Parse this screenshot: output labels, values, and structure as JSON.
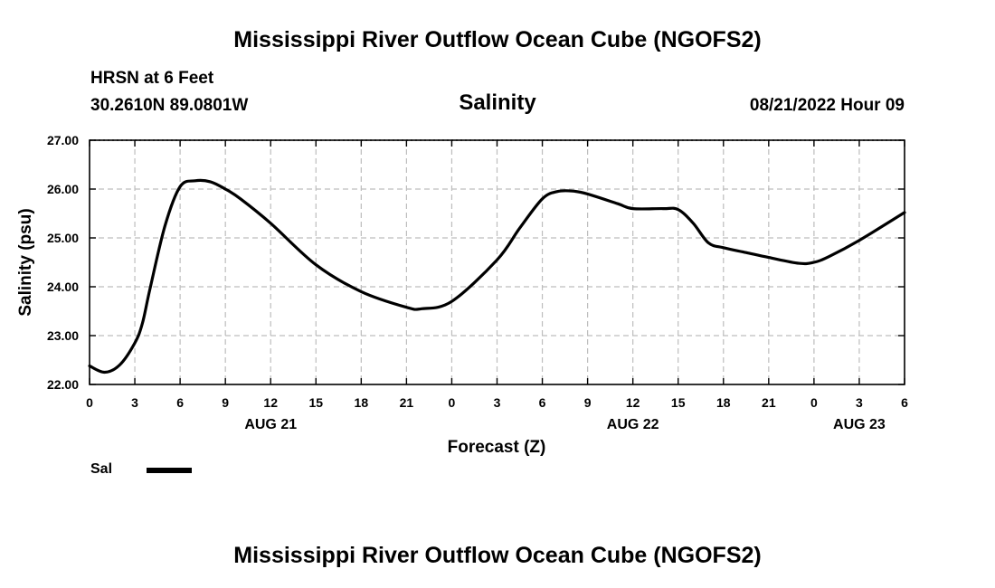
{
  "page": {
    "title_top": "Mississippi River Outflow Ocean Cube (NGOFS2)",
    "title_bottom": "Mississippi River Outflow Ocean Cube (NGOFS2)",
    "station": "HRSN at 6 Feet",
    "coords": "30.2610N  89.0801W",
    "datetime": "08/21/2022 Hour 09"
  },
  "chart_data": {
    "type": "line",
    "title": "Salinity",
    "xlabel": "Forecast (Z)",
    "ylabel": "Salinity (psu)",
    "xlim": [
      0,
      54
    ],
    "ylim": [
      22.0,
      27.0
    ],
    "x_ticks": [
      0,
      3,
      6,
      9,
      12,
      15,
      18,
      21,
      24,
      27,
      30,
      33,
      36,
      39,
      42,
      45,
      48,
      51,
      54
    ],
    "x_tick_labels": [
      "0",
      "3",
      "6",
      "9",
      "12",
      "15",
      "18",
      "21",
      "0",
      "3",
      "6",
      "9",
      "12",
      "15",
      "18",
      "21",
      "0",
      "3",
      "6"
    ],
    "day_labels": [
      {
        "x": 12,
        "label": "AUG 21"
      },
      {
        "x": 36,
        "label": "AUG 22"
      },
      {
        "x": 51,
        "label": "AUG 23"
      }
    ],
    "y_ticks": [
      22.0,
      23.0,
      24.0,
      25.0,
      26.0,
      27.0
    ],
    "y_tick_labels": [
      "22.00",
      "23.00",
      "24.00",
      "25.00",
      "26.00",
      "27.00"
    ],
    "grid": true,
    "legend_position": "bottom-left",
    "series": [
      {
        "name": "Sal",
        "color": "#000000",
        "x": [
          0,
          1,
          2,
          3,
          3.5,
          4,
          5,
          6,
          7,
          8,
          9,
          10,
          12,
          15,
          18,
          21,
          22,
          24,
          27,
          28.5,
          30,
          31,
          32,
          33,
          35,
          36,
          38,
          39,
          40,
          41,
          42,
          43.5,
          45,
          47,
          48,
          49,
          51,
          54
        ],
        "y": [
          22.38,
          22.25,
          22.4,
          22.85,
          23.25,
          23.95,
          25.25,
          26.05,
          26.17,
          26.15,
          26.0,
          25.8,
          25.3,
          24.45,
          23.9,
          23.58,
          23.55,
          23.7,
          24.55,
          25.2,
          25.8,
          25.95,
          25.96,
          25.9,
          25.7,
          25.6,
          25.6,
          25.58,
          25.3,
          24.9,
          24.8,
          24.7,
          24.6,
          24.48,
          24.5,
          24.62,
          24.95,
          25.52
        ]
      }
    ]
  }
}
